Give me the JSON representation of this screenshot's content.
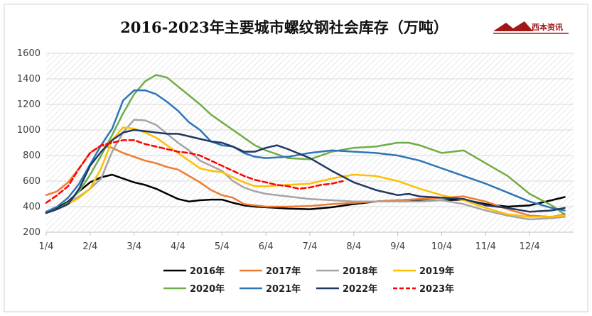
{
  "logo": {
    "text": "西本资讯",
    "color": "#a01818"
  },
  "chart_data": {
    "type": "line",
    "title": "2016-2023年主要城市螺纹钢社会库存（万吨）",
    "xlabel": "",
    "ylabel": "",
    "x_ticks": [
      "1/4",
      "2/4",
      "3/4",
      "4/4",
      "5/4",
      "6/4",
      "7/4",
      "8/4",
      "9/4",
      "10/4",
      "11/4",
      "12/4"
    ],
    "x_range": [
      1,
      13
    ],
    "ylim": [
      200,
      1600
    ],
    "y_ticks": [
      "200",
      "400",
      "600",
      "800",
      "1000",
      "1200",
      "1400",
      "1600"
    ],
    "legend_position": "bottom",
    "background": "diagonal-hatch",
    "series": [
      {
        "name": "2016年",
        "color": "#000000",
        "dash": false,
        "x": [
          1,
          1.25,
          1.5,
          1.75,
          2,
          2.25,
          2.5,
          2.75,
          3,
          3.25,
          3.5,
          3.75,
          4,
          4.25,
          4.5,
          4.75,
          5,
          5.25,
          5.5,
          5.75,
          6,
          6.5,
          7,
          7.5,
          8,
          8.5,
          9,
          9.5,
          10,
          10.5,
          11,
          11.5,
          12,
          12.5,
          12.8
        ],
        "y": [
          360,
          390,
          440,
          520,
          590,
          630,
          650,
          620,
          590,
          570,
          540,
          500,
          460,
          440,
          450,
          455,
          455,
          430,
          410,
          400,
          395,
          385,
          380,
          395,
          420,
          440,
          450,
          445,
          450,
          455,
          420,
          400,
          410,
          450,
          475
        ]
      },
      {
        "name": "2017年",
        "color": "#ed7d31",
        "dash": false,
        "x": [
          1,
          1.25,
          1.5,
          1.75,
          2,
          2.25,
          2.5,
          2.75,
          3,
          3.25,
          3.5,
          3.75,
          4,
          4.25,
          4.5,
          4.75,
          5,
          5.25,
          5.5,
          6,
          6.5,
          7,
          7.5,
          8,
          8.5,
          9,
          9.5,
          10,
          10.5,
          11,
          11.5,
          12,
          12.5,
          12.8
        ],
        "y": [
          490,
          520,
          590,
          700,
          820,
          880,
          860,
          820,
          790,
          760,
          740,
          710,
          690,
          640,
          590,
          530,
          490,
          470,
          420,
          400,
          400,
          405,
          420,
          430,
          440,
          450,
          460,
          470,
          480,
          440,
          380,
          330,
          320,
          340
        ]
      },
      {
        "name": "2018年",
        "color": "#a5a5a5",
        "dash": false,
        "x": [
          1,
          1.25,
          1.5,
          1.75,
          2,
          2.25,
          2.5,
          2.75,
          3,
          3.25,
          3.5,
          3.75,
          4,
          4.25,
          4.5,
          4.75,
          5,
          5.25,
          5.5,
          5.75,
          6,
          6.5,
          7,
          7.5,
          8,
          8.5,
          9,
          9.5,
          10,
          10.5,
          11,
          11.5,
          12,
          12.5,
          12.8
        ],
        "y": [
          350,
          380,
          430,
          480,
          540,
          620,
          830,
          980,
          1080,
          1075,
          1040,
          970,
          900,
          840,
          760,
          720,
          680,
          600,
          550,
          520,
          500,
          480,
          460,
          450,
          440,
          440,
          440,
          440,
          450,
          420,
          370,
          330,
          300,
          310,
          320
        ]
      },
      {
        "name": "2019年",
        "color": "#ffc000",
        "dash": false,
        "x": [
          1,
          1.25,
          1.5,
          1.75,
          2,
          2.25,
          2.5,
          2.75,
          3,
          3.25,
          3.5,
          3.75,
          4,
          4.25,
          4.5,
          4.75,
          5,
          5.25,
          5.5,
          5.75,
          6,
          6.5,
          7,
          7.5,
          8,
          8.5,
          9,
          9.5,
          10,
          10.5,
          11,
          11.5,
          12,
          12.5,
          12.8
        ],
        "y": [
          350,
          380,
          420,
          470,
          540,
          700,
          920,
          1020,
          1010,
          980,
          940,
          880,
          820,
          760,
          700,
          680,
          670,
          630,
          590,
          560,
          560,
          570,
          580,
          620,
          650,
          640,
          600,
          540,
          490,
          450,
          390,
          340,
          320,
          320,
          330
        ]
      },
      {
        "name": "2020年",
        "color": "#70ad47",
        "dash": false,
        "x": [
          1,
          1.25,
          1.5,
          1.75,
          2,
          2.25,
          2.5,
          2.75,
          3,
          3.25,
          3.5,
          3.75,
          4,
          4.25,
          4.5,
          4.75,
          5,
          5.25,
          5.5,
          5.75,
          6,
          6.5,
          7,
          7.5,
          8,
          8.5,
          9,
          9.25,
          9.5,
          10,
          10.5,
          11,
          11.5,
          12,
          12.5,
          12.8
        ],
        "y": [
          350,
          380,
          430,
          520,
          650,
          800,
          960,
          1130,
          1280,
          1380,
          1430,
          1410,
          1340,
          1270,
          1200,
          1120,
          1060,
          1000,
          940,
          880,
          840,
          780,
          770,
          830,
          860,
          870,
          900,
          900,
          880,
          820,
          840,
          740,
          640,
          500,
          410,
          340
        ]
      },
      {
        "name": "2021年",
        "color": "#2e75b6",
        "dash": false,
        "x": [
          1,
          1.25,
          1.5,
          1.75,
          2,
          2.25,
          2.5,
          2.75,
          3,
          3.25,
          3.5,
          3.75,
          4,
          4.25,
          4.5,
          4.75,
          5,
          5.25,
          5.5,
          5.75,
          6,
          6.5,
          7,
          7.5,
          8,
          8.5,
          9,
          9.5,
          10,
          10.5,
          11,
          11.5,
          12,
          12.5,
          12.8
        ],
        "y": [
          360,
          400,
          470,
          580,
          730,
          880,
          1010,
          1230,
          1310,
          1310,
          1280,
          1220,
          1150,
          1060,
          1000,
          910,
          880,
          870,
          820,
          790,
          780,
          790,
          820,
          840,
          830,
          820,
          800,
          760,
          700,
          640,
          580,
          510,
          440,
          390,
          370
        ]
      },
      {
        "name": "2022年",
        "color": "#1f3864",
        "dash": false,
        "x": [
          1,
          1.25,
          1.5,
          1.75,
          2,
          2.25,
          2.5,
          2.75,
          3,
          3.25,
          3.5,
          3.75,
          4,
          4.25,
          4.5,
          4.75,
          5,
          5.25,
          5.5,
          5.75,
          6,
          6.25,
          6.5,
          7,
          7.5,
          8,
          8.5,
          9,
          9.25,
          9.5,
          10,
          10.5,
          11,
          11.5,
          12,
          12.5,
          12.8
        ],
        "y": [
          350,
          380,
          420,
          540,
          720,
          830,
          920,
          980,
          1000,
          990,
          980,
          970,
          970,
          950,
          930,
          910,
          900,
          870,
          830,
          830,
          860,
          880,
          850,
          780,
          680,
          590,
          530,
          490,
          500,
          480,
          470,
          460,
          410,
          390,
          360,
          370,
          390
        ]
      },
      {
        "name": "2023年",
        "color": "#ff0000",
        "dash": true,
        "x": [
          1,
          1.25,
          1.5,
          1.75,
          2,
          2.25,
          2.5,
          2.75,
          3,
          3.25,
          3.5,
          3.75,
          4,
          4.25,
          4.5,
          4.75,
          5,
          5.25,
          5.5,
          5.75,
          6,
          6.25,
          6.5,
          6.75,
          7,
          7.25,
          7.5,
          7.75
        ],
        "y": [
          430,
          490,
          560,
          700,
          820,
          880,
          900,
          920,
          920,
          890,
          870,
          850,
          830,
          820,
          800,
          760,
          720,
          680,
          640,
          610,
          590,
          570,
          560,
          540,
          550,
          570,
          580,
          600
        ]
      }
    ]
  }
}
